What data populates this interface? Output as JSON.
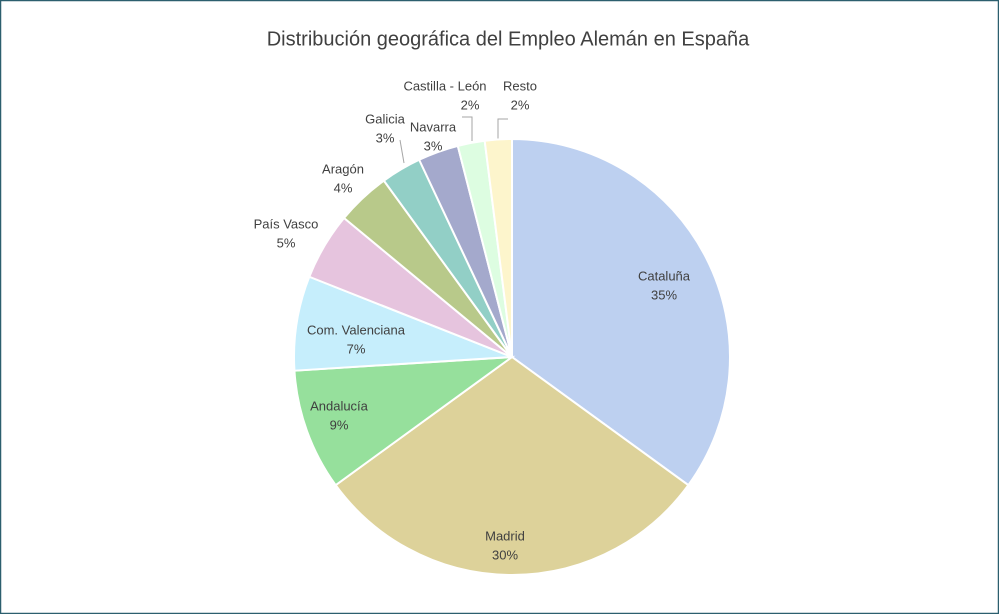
{
  "chart_data": {
    "type": "pie",
    "title": "Distribución geográfica del Empleo Alemán en España",
    "categories": [
      "Cataluña",
      "Madrid",
      "Andalucía",
      "Com. Valenciana",
      "País Vasco",
      "Aragón",
      "Galicia",
      "Navarra",
      "Castilla - León",
      "Resto"
    ],
    "values": [
      35,
      30,
      9,
      7,
      5,
      4,
      3,
      3,
      2,
      2
    ],
    "value_labels": [
      "35%",
      "30%",
      "9%",
      "7%",
      "5%",
      "4%",
      "3%",
      "3%",
      "2%",
      "2%"
    ],
    "colors": [
      "#bdd0f0",
      "#ddd29a",
      "#96e09c",
      "#c6eefc",
      "#e6c4de",
      "#b8c98a",
      "#92cfc6",
      "#a4a9cc",
      "#ddfde1",
      "#fdf5cc"
    ]
  }
}
